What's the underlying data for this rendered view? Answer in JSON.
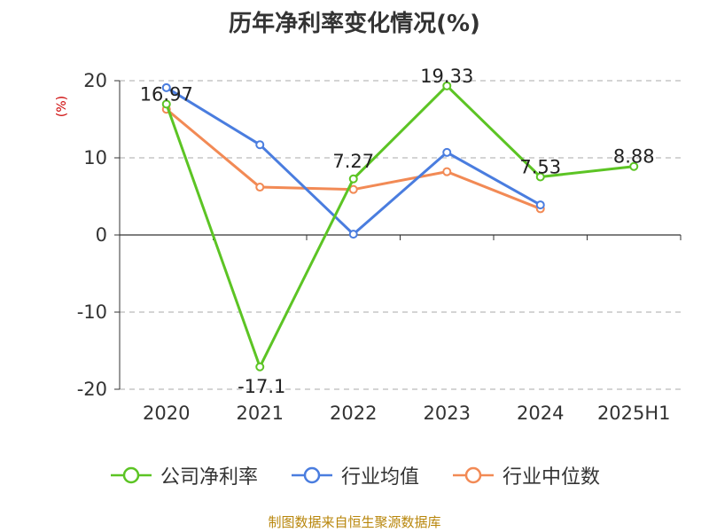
{
  "title": "历年净利率变化情况(%)",
  "unit_label": "(%)",
  "source": "制图数据来自恒生聚源数据库",
  "colors": {
    "company": "#5cc424",
    "industry_avg": "#4a7ddf",
    "industry_median": "#f28a55",
    "axis": "#333333",
    "grid": "#bbbbbb"
  },
  "chart_data": {
    "type": "line",
    "title": "历年净利率变化情况(%)",
    "ylabel": "(%)",
    "categories": [
      "2020",
      "2021",
      "2022",
      "2023",
      "2024",
      "2025H1"
    ],
    "ylim": [
      -20,
      20
    ],
    "yticks": [
      20,
      10,
      0,
      -10,
      -20
    ],
    "grid": true,
    "legend_position": "bottom",
    "series": [
      {
        "name": "公司净利率",
        "color": "#5cc424",
        "values": [
          16.97,
          -17.1,
          7.27,
          19.33,
          7.53,
          8.88
        ],
        "labels": [
          "16.97",
          "-17.1",
          "7.27",
          "19.33",
          "7.53",
          "8.88"
        ]
      },
      {
        "name": "行业均值",
        "color": "#4a7ddf",
        "values": [
          19.1,
          11.7,
          0.1,
          10.7,
          3.9,
          null
        ]
      },
      {
        "name": "行业中位数",
        "color": "#f28a55",
        "values": [
          16.3,
          6.2,
          5.9,
          8.2,
          3.4,
          null
        ]
      }
    ]
  }
}
